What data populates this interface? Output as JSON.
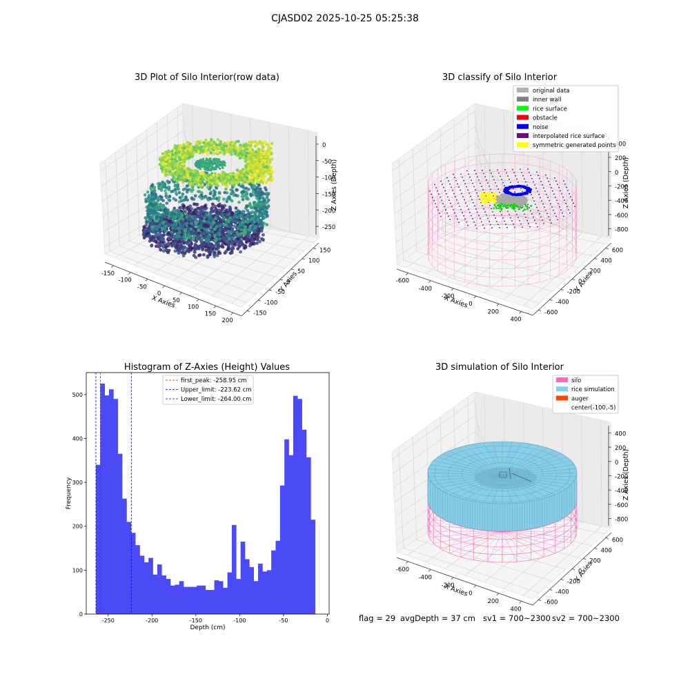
{
  "figure_title": "CJASD02 2025-10-25 05:25:38",
  "status_line": {
    "flag": "flag = 29",
    "avg_depth": "avgDepth = 37 cm",
    "sv1": "sv1 = 700~2300",
    "sv2": "sv2 = 700~2300"
  },
  "colors": {
    "hist_bar": "#4a4af7",
    "peak_line": "#ff0000",
    "limit_line": "#0000ff",
    "pane": "#f2f2f2",
    "grid": "#d9d9d9",
    "silo": "#ff69b4",
    "rice": "#87ceeb",
    "auger": "#ff4500"
  },
  "chart_data": [
    {
      "type": "scatter",
      "title": "3D Plot of Silo Interior(row data)",
      "xlabel": "X Axies",
      "ylabel": "Y Axies",
      "zlabel": "Z Axies (Depth)",
      "xticks": [
        "-150",
        "-100",
        "-50",
        "0",
        "50",
        "100",
        "150",
        "200"
      ],
      "yticks": [
        "-150",
        "-100",
        "-50",
        "0",
        "50",
        "100",
        "150"
      ],
      "zticks": [
        "0",
        "-50",
        "-100",
        "-150",
        "-200",
        "-250"
      ],
      "xlim": [
        -175,
        215
      ],
      "ylim": [
        -160,
        175
      ],
      "zlim": [
        -280,
        5
      ],
      "colormap": "viridis"
    },
    {
      "type": "scatter",
      "title": "3D classify of Silo Interior",
      "xlabel": "X Axies",
      "ylabel": "Y Axies",
      "zlabel": "Z Axies (Depth)",
      "xticks": [
        "-600",
        "-400",
        "-200",
        "0",
        "200",
        "400"
      ],
      "yticks": [
        "-600",
        "-400",
        "-200",
        "0",
        "200",
        "400",
        "600"
      ],
      "zticks": [
        "400",
        "200",
        "0",
        "-200",
        "-400",
        "-600",
        "-800"
      ],
      "legend_position": "top-right",
      "legend": [
        {
          "label": "original data",
          "color": "#b0b0b0"
        },
        {
          "label": "inner wall",
          "color": "#808080"
        },
        {
          "label": "rice surface",
          "color": "#00ff00"
        },
        {
          "label": "obstacle",
          "color": "#ff0000"
        },
        {
          "label": "noise",
          "color": "#0000ff"
        },
        {
          "label": "interpolated rice surface",
          "color": "#800080"
        },
        {
          "label": "symmetric generated points",
          "color": "#ffff00"
        }
      ]
    },
    {
      "type": "bar",
      "title": "Histogram of Z-Axies (Height) Values",
      "xlabel": "Depth (cm)",
      "ylabel": "Frequency",
      "xlim": [
        -275,
        2
      ],
      "ylim": [
        0,
        550
      ],
      "xticks": [
        -250,
        -200,
        -150,
        -100,
        -50,
        0
      ],
      "yticks": [
        0,
        100,
        200,
        300,
        400,
        500
      ],
      "bin_start": -264,
      "bin_width": 5,
      "values": [
        340,
        525,
        498,
        512,
        490,
        365,
        263,
        210,
        185,
        157,
        133,
        118,
        128,
        90,
        113,
        88,
        80,
        65,
        67,
        75,
        62,
        62,
        62,
        65,
        65,
        55,
        55,
        77,
        75,
        60,
        95,
        203,
        80,
        165,
        125,
        107,
        75,
        115,
        97,
        100,
        145,
        167,
        293,
        398,
        362,
        497,
        490,
        420,
        357,
        215
      ],
      "vlines": [
        {
          "x": -258.95,
          "label": "first_peak: -258.95 cm",
          "color": "#ff0000"
        },
        {
          "x": -223.62,
          "label": "Upper_limit: -223.62 cm",
          "color": "#0000ff"
        },
        {
          "x": -264.0,
          "label": "Lower_limit: -264.00 cm",
          "color": "#0000ff"
        }
      ],
      "legend_position": "top-center"
    },
    {
      "type": "surface",
      "title": "3D simulation of Silo Interior",
      "xlabel": "X Axies",
      "ylabel": "Y Axies",
      "zlabel": "Z Axies (Depth)",
      "xticks": [
        "-600",
        "-400",
        "-200",
        "0",
        "200",
        "400"
      ],
      "yticks": [
        "-600",
        "-400",
        "-200",
        "0",
        "200",
        "400",
        "600"
      ],
      "zticks": [
        "400",
        "200",
        "0",
        "-200",
        "-400",
        "-600",
        "-800"
      ],
      "legend_position": "top-right",
      "legend": [
        {
          "label": "silo",
          "color": "#ff69b4"
        },
        {
          "label": "rice simulation",
          "color": "#87ceeb"
        },
        {
          "label": "auger",
          "color": "#ff4500"
        },
        {
          "label": "center(-100,-5)",
          "color": ""
        }
      ]
    }
  ]
}
